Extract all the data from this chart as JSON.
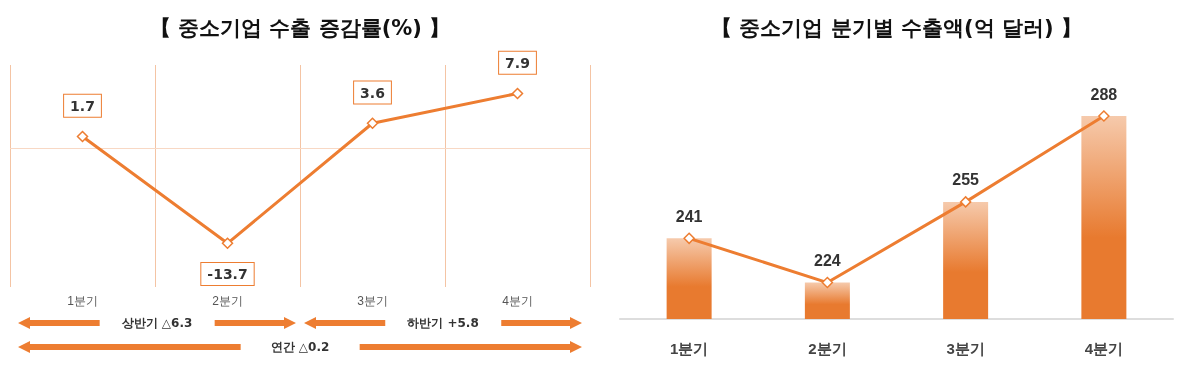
{
  "chart_data": [
    {
      "type": "line",
      "title": "【 중소기업 수출 증감률(%) 】",
      "categories": [
        "1분기",
        "2분기",
        "3분기",
        "4분기"
      ],
      "series": [
        {
          "color": "#ed7d31",
          "values": [
            1.7,
            -13.7,
            3.6,
            7.9
          ]
        }
      ],
      "ylim": [
        -20,
        12
      ],
      "tick_labels": "x",
      "grid": "x",
      "marker": "diamond",
      "line_style": "solid",
      "data_labels": true,
      "ref_lines": [
        {
          "axis": "y",
          "value": 0,
          "color": "#f8d8c4"
        }
      ],
      "annotations": [
        "상반기 △6.3",
        "하반기 +5.8",
        "연간 △0.2"
      ]
    },
    {
      "type": "bar",
      "title": "【 중소기업 분기별 수출액(억 달러) 】",
      "categories": [
        "1분기",
        "2분기",
        "3분기",
        "4분기"
      ],
      "series": [
        {
          "color": "#e87a2f",
          "values": [
            241,
            224,
            255,
            288
          ],
          "value_labels": [
            "241",
            "224",
            "255",
            "288"
          ]
        },
        {
          "type": "line",
          "color": "#ed7d31",
          "values": [
            241,
            224,
            255,
            288
          ]
        }
      ],
      "ylim": [
        210,
        288
      ],
      "tick_labels": "x",
      "marker": "diamond",
      "line_style": "solid"
    }
  ]
}
